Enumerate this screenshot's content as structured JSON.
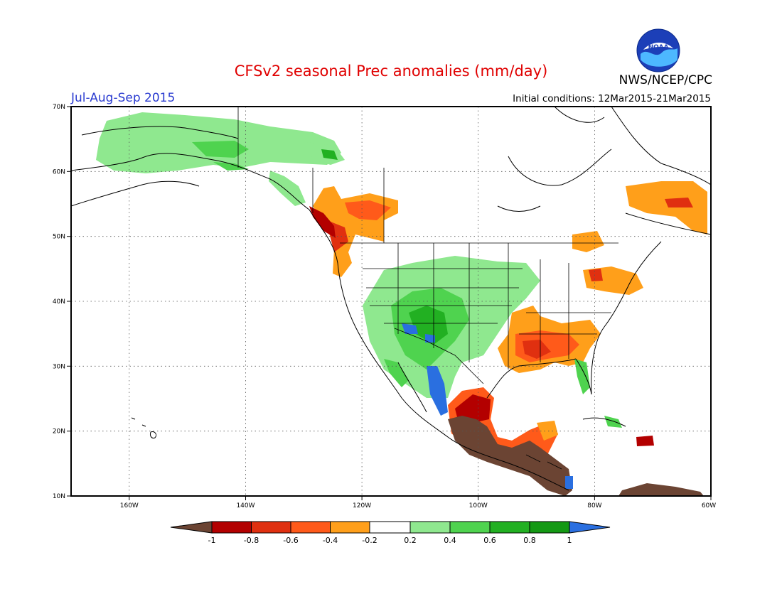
{
  "header": {
    "title": "CFSv2 seasonal Prec anomalies (mm/day)",
    "season": "Jul-Aug-Sep 2015",
    "initial_conditions": "Initial conditions: 12Mar2015-21Mar2015",
    "org": "NWS/NCEP/CPC",
    "logo_text": "NOAA"
  },
  "axes": {
    "lat_labels": [
      "70N",
      "60N",
      "50N",
      "40N",
      "30N",
      "20N",
      "10N"
    ],
    "lon_labels": [
      "160W",
      "140W",
      "120W",
      "100W",
      "80W",
      "60W"
    ]
  },
  "colorbar": {
    "labels": [
      "-1",
      "-0.8",
      "-0.6",
      "-0.4",
      "-0.2",
      "0.2",
      "0.4",
      "0.6",
      "0.8",
      "1"
    ],
    "colors": [
      "#6b4433",
      "#b30000",
      "#e03010",
      "#ff5a1a",
      "#ff9f1a",
      "#ffffff",
      "#8fe88f",
      "#4fd34f",
      "#22b022",
      "#149914",
      "#2a6fe0"
    ]
  }
}
